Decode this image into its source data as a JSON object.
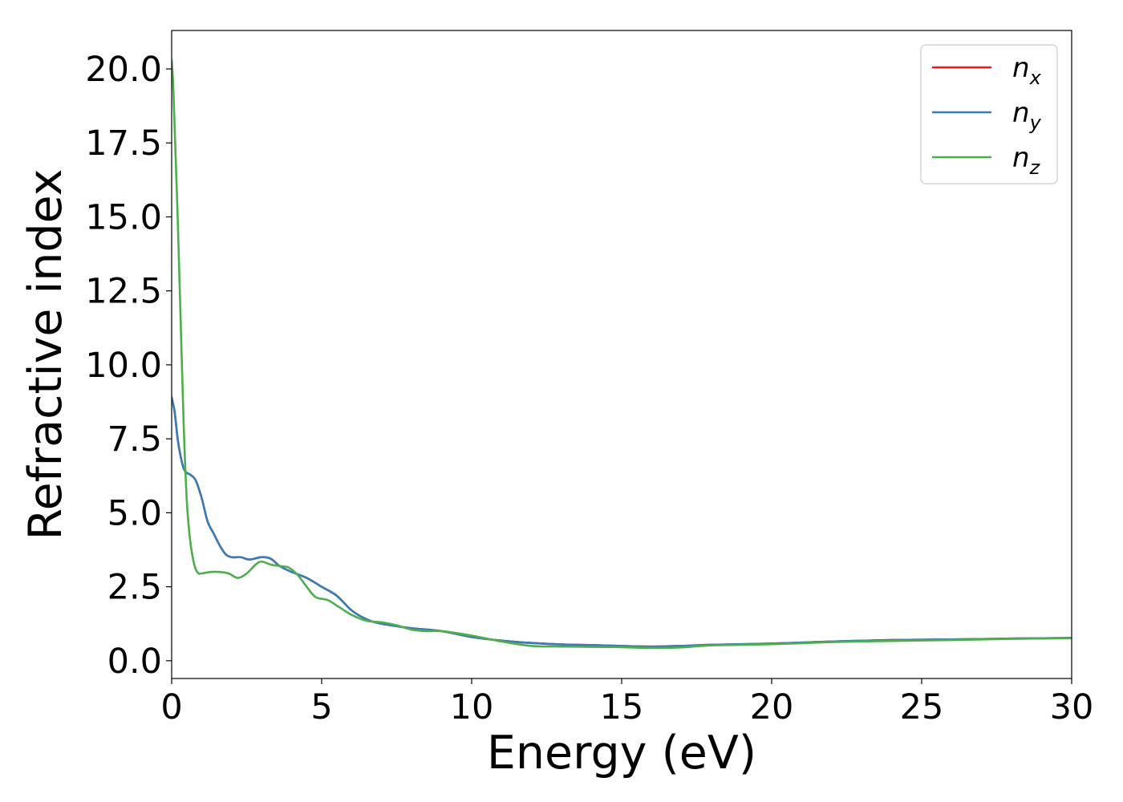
{
  "chart_data": {
    "type": "line",
    "title": "",
    "xlabel": "Energy (eV)",
    "ylabel": "Refractive index",
    "xlim": [
      0,
      30
    ],
    "ylim": [
      -0.6,
      21.3
    ],
    "xticks": [
      0,
      5,
      10,
      15,
      20,
      25,
      30
    ],
    "xtick_labels": [
      "0",
      "5",
      "10",
      "15",
      "20",
      "25",
      "30"
    ],
    "yticks": [
      0,
      2.5,
      5,
      7.5,
      10,
      12.5,
      15,
      17.5,
      20
    ],
    "ytick_labels": [
      "0.0",
      "2.5",
      "5.0",
      "7.5",
      "10.0",
      "12.5",
      "15.0",
      "17.5",
      "20.0"
    ],
    "grid": false,
    "legend_position": "top-right",
    "legend": [
      {
        "base": "n",
        "sub": "x",
        "color": "#e41a1c"
      },
      {
        "base": "n",
        "sub": "y",
        "color": "#377eb8"
      },
      {
        "base": "n",
        "sub": "z",
        "color": "#4daf4a"
      }
    ],
    "series": [
      {
        "name": "n_x",
        "color": "#e41a1c",
        "x": [
          0,
          0.1,
          0.2,
          0.3,
          0.4,
          0.5,
          0.6,
          0.8,
          1.0,
          1.2,
          1.4,
          1.6,
          1.8,
          2.0,
          2.3,
          2.6,
          3.0,
          3.3,
          3.6,
          4.0,
          4.5,
          5.0,
          5.5,
          6.0,
          6.5,
          7.0,
          8.0,
          9.0,
          10.0,
          11.0,
          12.0,
          13.0,
          14.0,
          15.0,
          16.0,
          17.0,
          18.0,
          20.0,
          22.0,
          24.0,
          26.0,
          28.0,
          30.0
        ],
        "y": [
          8.9,
          8.4,
          7.5,
          6.9,
          6.5,
          6.35,
          6.3,
          6.1,
          5.5,
          4.7,
          4.3,
          3.9,
          3.6,
          3.5,
          3.5,
          3.42,
          3.5,
          3.45,
          3.2,
          3.0,
          2.8,
          2.5,
          2.2,
          1.7,
          1.4,
          1.25,
          1.1,
          1.0,
          0.8,
          0.68,
          0.6,
          0.55,
          0.53,
          0.5,
          0.48,
          0.5,
          0.54,
          0.58,
          0.65,
          0.7,
          0.72,
          0.75,
          0.77
        ]
      },
      {
        "name": "n_y",
        "color": "#377eb8",
        "x": [
          0,
          0.1,
          0.2,
          0.3,
          0.4,
          0.5,
          0.6,
          0.8,
          1.0,
          1.2,
          1.4,
          1.6,
          1.8,
          2.0,
          2.3,
          2.6,
          3.0,
          3.3,
          3.6,
          4.0,
          4.5,
          5.0,
          5.5,
          6.0,
          6.5,
          7.0,
          8.0,
          9.0,
          10.0,
          11.0,
          12.0,
          13.0,
          14.0,
          15.0,
          16.0,
          17.0,
          18.0,
          20.0,
          22.0,
          24.0,
          26.0,
          28.0,
          30.0
        ],
        "y": [
          8.9,
          8.4,
          7.5,
          6.9,
          6.5,
          6.35,
          6.3,
          6.1,
          5.5,
          4.7,
          4.3,
          3.9,
          3.6,
          3.5,
          3.5,
          3.42,
          3.5,
          3.45,
          3.2,
          3.0,
          2.8,
          2.5,
          2.2,
          1.7,
          1.4,
          1.25,
          1.1,
          1.0,
          0.8,
          0.68,
          0.6,
          0.55,
          0.53,
          0.5,
          0.48,
          0.5,
          0.54,
          0.58,
          0.65,
          0.7,
          0.72,
          0.75,
          0.77
        ]
      },
      {
        "name": "n_z",
        "color": "#4daf4a",
        "x": [
          0,
          0.05,
          0.1,
          0.2,
          0.3,
          0.4,
          0.5,
          0.6,
          0.7,
          0.8,
          0.9,
          1.0,
          1.3,
          1.6,
          1.9,
          2.2,
          2.5,
          2.8,
          3.0,
          3.3,
          3.6,
          3.9,
          4.2,
          4.5,
          4.8,
          5.2,
          5.6,
          6.0,
          6.5,
          7.0,
          7.5,
          8.0,
          8.5,
          9.0,
          10.0,
          11.0,
          12.0,
          13.0,
          14.0,
          15.0,
          16.0,
          17.0,
          18.0,
          20.0,
          22.0,
          24.0,
          26.0,
          28.0,
          30.0
        ],
        "y": [
          20.3,
          19.5,
          18.0,
          15.0,
          11.5,
          8.0,
          5.5,
          4.2,
          3.5,
          3.1,
          2.95,
          2.95,
          3.0,
          3.0,
          2.95,
          2.8,
          2.95,
          3.25,
          3.35,
          3.25,
          3.2,
          3.15,
          2.9,
          2.5,
          2.15,
          2.05,
          1.8,
          1.55,
          1.35,
          1.3,
          1.2,
          1.05,
          1.0,
          1.0,
          0.85,
          0.65,
          0.5,
          0.48,
          0.47,
          0.46,
          0.43,
          0.45,
          0.52,
          0.56,
          0.63,
          0.67,
          0.7,
          0.74,
          0.76
        ]
      }
    ]
  }
}
